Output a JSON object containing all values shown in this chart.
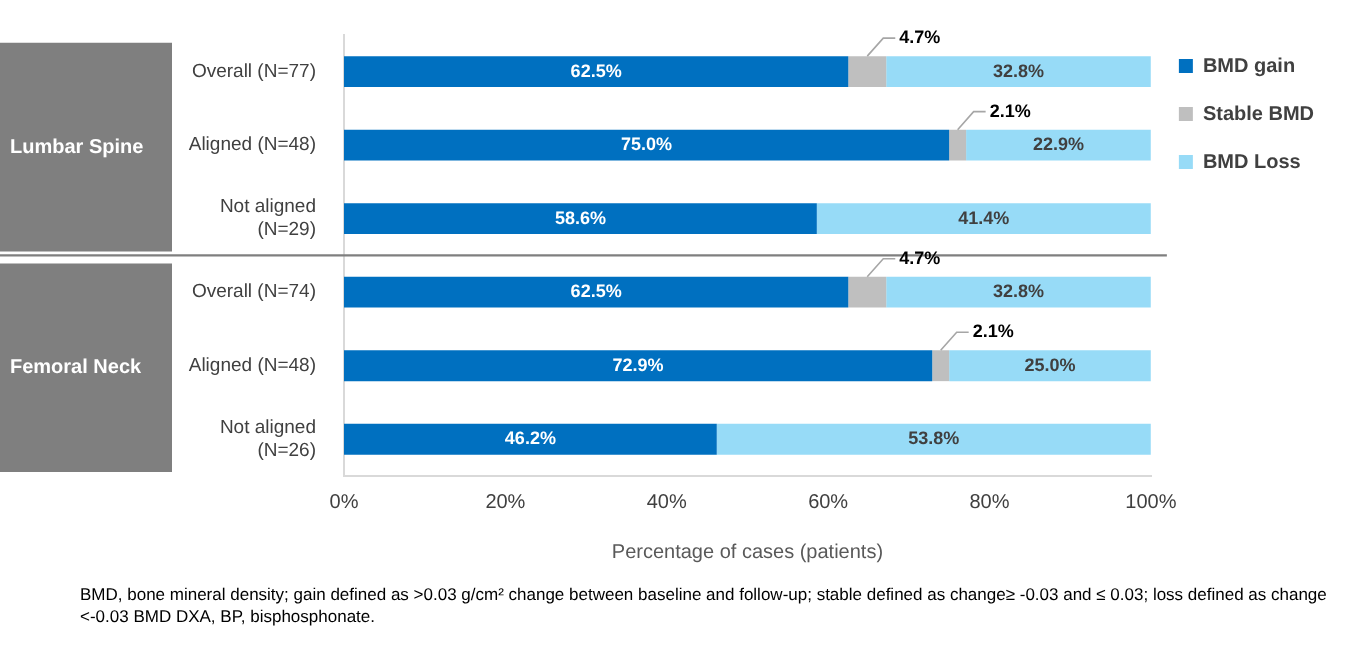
{
  "chart_data": {
    "type": "bar",
    "orientation": "horizontal",
    "stacked": true,
    "categories": [
      "Overall (N=77)",
      "Aligned (N=48)",
      "Not aligned (N=29)",
      "Overall (N=74)",
      "Aligned (N=48)",
      "Not aligned (N=26)"
    ],
    "series": [
      {
        "name": "BMD gain",
        "color": "#0070c0",
        "values": [
          62.5,
          75.0,
          58.6,
          62.5,
          72.9,
          46.2
        ],
        "value_labels": [
          "62.5%",
          "75.0%",
          "58.6%",
          "62.5%",
          "72.9%",
          "46.2%"
        ]
      },
      {
        "name": "Stable BMD",
        "color": "#bfbfbf",
        "values": [
          4.7,
          2.1,
          0,
          4.7,
          2.1,
          0
        ],
        "value_labels": [
          "4.7%",
          "2.1%",
          null,
          "4.7%",
          "2.1%",
          null
        ]
      },
      {
        "name": "BMD Loss",
        "color": "#97dbf7",
        "values": [
          32.8,
          22.9,
          41.4,
          32.8,
          25.0,
          53.8
        ],
        "value_labels": [
          "32.8%",
          "22.9%",
          "41.4%",
          "32.8%",
          "25.0%",
          "53.8%"
        ]
      }
    ],
    "xlim": [
      0,
      100
    ],
    "xticks": [
      {
        "value": 0,
        "label": "0%"
      },
      {
        "value": 20,
        "label": "20%"
      },
      {
        "value": 40,
        "label": "40%"
      },
      {
        "value": 60,
        "label": "60%"
      },
      {
        "value": 80,
        "label": "80%"
      },
      {
        "value": 100,
        "label": "100%"
      }
    ],
    "xlabel": "Percentage of cases (patients)",
    "legend": "top right",
    "grid": false,
    "annotations": [
      "Lumbar Spine",
      "Femoral Neck",
      "BMD, bone mineral density; gain defined as >0.03 g/cm² change between baseline and follow-up; stable defined as change≥ -0.03 and ≤ 0.03; loss defined as change <-0.03 BMD DXA, BP, bisphosphonate."
    ]
  }
}
